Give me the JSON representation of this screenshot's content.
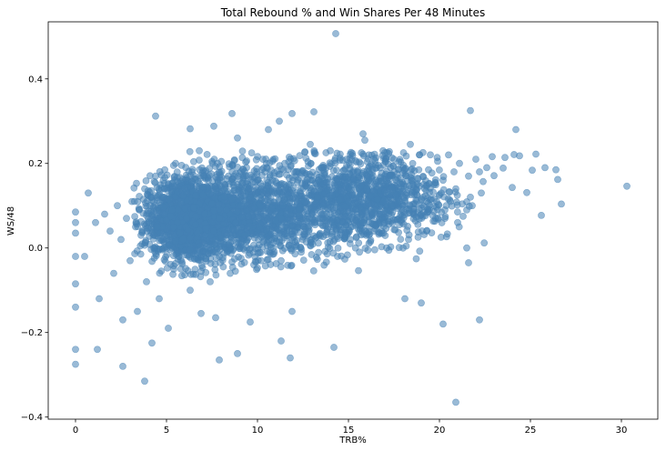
{
  "chart_data": {
    "type": "scatter",
    "title": "Total Rebound % and Win Shares Per 48 Minutes",
    "xlabel": "TRB%",
    "ylabel": "WS/48",
    "xlim": [
      -1.5,
      32
    ],
    "ylim": [
      -0.405,
      0.535
    ],
    "x_ticks": [
      0,
      5,
      10,
      15,
      20,
      25,
      30
    ],
    "y_ticks": [
      -0.4,
      -0.2,
      0.0,
      0.2,
      0.4
    ],
    "x_tick_labels": [
      "0",
      "5",
      "10",
      "15",
      "20",
      "25",
      "30"
    ],
    "y_tick_labels": [
      "−0.4",
      "−0.2",
      "0.0",
      "0.2",
      "0.4"
    ],
    "grid": false,
    "legend": "none",
    "marker_color": "#4682b4",
    "marker_alpha": 0.55,
    "series": [
      {
        "values": [
          [
            14.3,
            0.507
          ],
          [
            30.3,
            0.146
          ],
          [
            26.7,
            0.104
          ],
          [
            26.5,
            0.162
          ],
          [
            26.4,
            0.185
          ],
          [
            25.8,
            0.19
          ],
          [
            25.6,
            0.077
          ],
          [
            25.3,
            0.222
          ],
          [
            25.1,
            0.184
          ],
          [
            24.8,
            0.131
          ],
          [
            24.4,
            0.218
          ],
          [
            24.1,
            0.221
          ],
          [
            24.0,
            0.143
          ],
          [
            24.2,
            0.28
          ],
          [
            23.6,
            0.214
          ],
          [
            23.5,
            0.189
          ],
          [
            23.0,
            0.171
          ],
          [
            22.9,
            0.216
          ],
          [
            22.6,
            0.19
          ],
          [
            22.4,
            0.157
          ],
          [
            22.3,
            0.13
          ],
          [
            22.2,
            0.18
          ],
          [
            22.0,
            0.21
          ],
          [
            21.8,
            0.1
          ],
          [
            21.7,
            0.12
          ],
          [
            21.6,
            0.17
          ],
          [
            21.5,
            0.09
          ],
          [
            21.3,
            0.075
          ],
          [
            21.1,
            0.2
          ],
          [
            21.0,
            0.06
          ],
          [
            20.9,
            0.14
          ],
          [
            20.8,
            0.18
          ],
          [
            20.6,
            0.11
          ],
          [
            20.5,
            0.22
          ],
          [
            20.3,
            0.09
          ],
          [
            20.2,
            0.16
          ],
          [
            20.1,
            0.13
          ],
          [
            19.9,
            0.205
          ],
          [
            19.8,
            0.07
          ],
          [
            19.7,
            0.15
          ],
          [
            19.5,
            0.115
          ],
          [
            19.4,
            0.185
          ],
          [
            19.3,
            0.04
          ],
          [
            19.1,
            0.12
          ],
          [
            19.0,
            0.095
          ],
          [
            18.9,
            0.22
          ],
          [
            18.8,
            0.165
          ],
          [
            18.6,
            0.08
          ],
          [
            18.5,
            0.135
          ],
          [
            18.4,
            0.245
          ],
          [
            18.3,
            0.02
          ],
          [
            18.1,
            0.11
          ],
          [
            18.0,
            0.19
          ],
          [
            17.9,
            0.15
          ],
          [
            17.8,
            0.055
          ],
          [
            17.6,
            0.125
          ],
          [
            17.5,
            0.21
          ],
          [
            17.4,
            0.1
          ],
          [
            17.3,
            0.17
          ],
          [
            17.1,
            0.0
          ],
          [
            17.0,
            0.135
          ],
          [
            16.9,
            0.23
          ],
          [
            16.8,
            0.08
          ],
          [
            16.6,
            0.115
          ],
          [
            16.5,
            0.16
          ],
          [
            16.4,
            0.04
          ],
          [
            16.3,
            0.195
          ],
          [
            16.1,
            0.105
          ],
          [
            16.0,
            0.14
          ],
          [
            15.9,
            0.255
          ],
          [
            15.8,
            0.06
          ],
          [
            15.6,
            0.12
          ],
          [
            15.5,
            0.18
          ],
          [
            15.4,
            0.09
          ],
          [
            15.3,
            0.15
          ],
          [
            15.1,
            0.02
          ],
          [
            15.0,
            0.11
          ],
          [
            14.9,
            0.21
          ],
          [
            14.8,
            0.075
          ],
          [
            14.6,
            0.135
          ],
          [
            14.5,
            0.17
          ],
          [
            14.4,
            -0.02
          ],
          [
            14.3,
            0.095
          ],
          [
            14.1,
            0.125
          ],
          [
            14.0,
            0.23
          ],
          [
            13.9,
            0.05
          ],
          [
            13.8,
            0.155
          ],
          [
            13.6,
            0.1
          ],
          [
            13.5,
            0.19
          ],
          [
            13.4,
            0.03
          ],
          [
            13.3,
            0.12
          ],
          [
            13.1,
            0.085
          ],
          [
            13.0,
            0.16
          ],
          [
            12.9,
            0.245
          ],
          [
            12.8,
            0.06
          ],
          [
            12.6,
            0.11
          ],
          [
            12.5,
            0.14
          ],
          [
            12.4,
            -0.01
          ],
          [
            12.3,
            0.09
          ],
          [
            12.1,
            0.18
          ],
          [
            12.0,
            0.12
          ],
          [
            11.9,
            0.04
          ],
          [
            11.8,
            0.15
          ],
          [
            11.6,
            0.08
          ],
          [
            11.5,
            0.2
          ],
          [
            11.4,
            0.1
          ],
          [
            11.3,
            -0.03
          ],
          [
            11.1,
            0.13
          ],
          [
            11.0,
            0.065
          ],
          [
            10.9,
            0.17
          ],
          [
            10.8,
            0.095
          ],
          [
            10.6,
            0.02
          ],
          [
            10.5,
            0.14
          ],
          [
            10.4,
            0.11
          ],
          [
            10.3,
            0.21
          ],
          [
            10.1,
            0.05
          ],
          [
            10.0,
            0.085
          ],
          [
            9.9,
            0.155
          ],
          [
            9.8,
            -0.04
          ],
          [
            9.6,
            0.12
          ],
          [
            9.5,
            0.075
          ],
          [
            9.4,
            0.19
          ],
          [
            9.3,
            0.03
          ],
          [
            9.1,
            0.1
          ],
          [
            9.0,
            0.135
          ],
          [
            8.9,
            0.26
          ],
          [
            8.8,
            0.06
          ],
          [
            8.6,
            0.115
          ],
          [
            8.5,
            -0.06
          ],
          [
            8.4,
            0.17
          ],
          [
            8.3,
            0.09
          ],
          [
            8.1,
            0.01
          ],
          [
            8.0,
            0.145
          ],
          [
            7.9,
            0.07
          ],
          [
            7.8,
            0.2
          ],
          [
            7.6,
            0.04
          ],
          [
            7.5,
            0.105
          ],
          [
            7.4,
            -0.08
          ],
          [
            7.3,
            0.16
          ],
          [
            7.1,
            0.08
          ],
          [
            7.0,
            0.125
          ],
          [
            6.9,
            -0.02
          ],
          [
            6.8,
            0.23
          ],
          [
            6.6,
            0.055
          ],
          [
            6.5,
            0.095
          ],
          [
            6.4,
            0.18
          ],
          [
            6.3,
            -0.1
          ],
          [
            6.1,
            0.07
          ],
          [
            6.0,
            0.14
          ],
          [
            5.9,
            0.02
          ],
          [
            5.8,
            0.11
          ],
          [
            5.6,
            0.06
          ],
          [
            5.5,
            0.2
          ],
          [
            5.4,
            -0.05
          ],
          [
            5.3,
            0.09
          ],
          [
            5.1,
            0.15
          ],
          [
            5.0,
            0.03
          ],
          [
            4.9,
            0.08
          ],
          [
            4.8,
            0.12
          ],
          [
            4.6,
            -0.12
          ],
          [
            4.5,
            0.05
          ],
          [
            4.4,
            0.17
          ],
          [
            4.3,
            0.0
          ],
          [
            4.1,
            0.1
          ],
          [
            4.0,
            0.06
          ],
          [
            3.9,
            -0.08
          ],
          [
            3.8,
            0.14
          ],
          [
            3.6,
            0.03
          ],
          [
            3.5,
            0.09
          ],
          [
            3.4,
            -0.15
          ],
          [
            3.3,
            0.05
          ],
          [
            3.1,
            0.11
          ],
          [
            3.0,
            -0.03
          ],
          [
            2.8,
            0.07
          ],
          [
            2.6,
            -0.17
          ],
          [
            2.5,
            0.02
          ],
          [
            2.3,
            0.1
          ],
          [
            2.1,
            -0.06
          ],
          [
            1.9,
            0.04
          ],
          [
            1.6,
            0.08
          ],
          [
            1.3,
            -0.12
          ],
          [
            1.1,
            0.06
          ],
          [
            0.7,
            0.13
          ],
          [
            0.5,
            -0.02
          ],
          [
            0.0,
            0.085
          ],
          [
            0.0,
            0.06
          ],
          [
            0.0,
            0.035
          ],
          [
            0.0,
            -0.02
          ],
          [
            0.0,
            -0.085
          ],
          [
            0.0,
            -0.14
          ],
          [
            0.0,
            -0.24
          ],
          [
            0.0,
            -0.275
          ],
          [
            1.2,
            -0.24
          ],
          [
            2.6,
            -0.28
          ],
          [
            3.8,
            -0.315
          ],
          [
            4.2,
            -0.225
          ],
          [
            7.9,
            -0.265
          ],
          [
            8.9,
            -0.25
          ],
          [
            11.3,
            -0.22
          ],
          [
            11.8,
            -0.26
          ],
          [
            14.2,
            -0.235
          ],
          [
            20.9,
            -0.365
          ],
          [
            20.2,
            -0.18
          ],
          [
            22.2,
            -0.17
          ],
          [
            19.0,
            -0.13
          ],
          [
            18.1,
            -0.12
          ],
          [
            21.6,
            -0.035
          ],
          [
            21.5,
            0.0
          ],
          [
            11.9,
            -0.15
          ],
          [
            9.6,
            -0.175
          ],
          [
            7.7,
            -0.165
          ],
          [
            6.9,
            -0.155
          ],
          [
            5.1,
            -0.19
          ],
          [
            4.4,
            0.312
          ],
          [
            8.6,
            0.318
          ],
          [
            11.9,
            0.318
          ],
          [
            13.1,
            0.322
          ],
          [
            21.7,
            0.325
          ],
          [
            15.8,
            0.27
          ],
          [
            11.2,
            0.3
          ],
          [
            7.6,
            0.288
          ],
          [
            10.6,
            0.28
          ],
          [
            6.3,
            0.282
          ]
        ]
      }
    ],
    "dense_clusters": [
      {
        "x_mean": 5.8,
        "x_sd": 1.0,
        "y_mean": 0.065,
        "y_sd": 0.048,
        "count": 950
      },
      {
        "x_mean": 7.6,
        "x_sd": 1.3,
        "y_mean": 0.075,
        "y_sd": 0.052,
        "count": 750
      },
      {
        "x_mean": 10.5,
        "x_sd": 1.6,
        "y_mean": 0.085,
        "y_sd": 0.055,
        "count": 650
      },
      {
        "x_mean": 13.8,
        "x_sd": 1.7,
        "y_mean": 0.1,
        "y_sd": 0.055,
        "count": 550
      },
      {
        "x_mean": 16.3,
        "x_sd": 1.3,
        "y_mean": 0.12,
        "y_sd": 0.05,
        "count": 450
      },
      {
        "x_mean": 18.5,
        "x_sd": 1.4,
        "y_mean": 0.12,
        "y_sd": 0.05,
        "count": 200
      }
    ]
  }
}
